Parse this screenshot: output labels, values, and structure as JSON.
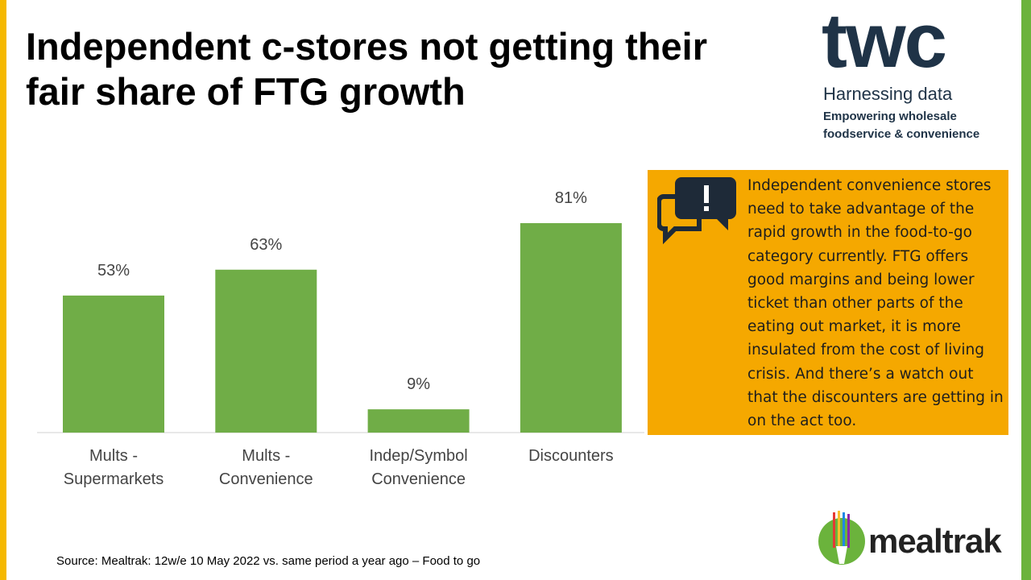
{
  "title": "Independent c-stores not getting their fair share of FTG growth",
  "chart_data": {
    "type": "bar",
    "categories": [
      "Mults - Supermarkets",
      "Mults - Convenience",
      "Indep/Symbol Convenience",
      "Discounters"
    ],
    "values": [
      53,
      63,
      9,
      81
    ],
    "value_labels": [
      "53%",
      "63%",
      "9%",
      "81%"
    ],
    "color": "#70ad47"
  },
  "callout": "Independent convenience stores need to take advantage of the rapid growth in the food-to-go category currently. FTG offers good margins and being lower ticket than other parts of the eating out market, it is more insulated from the cost of living crisis. And there’s a watch out that the discounters are getting in on the act too.",
  "source": "Source: Mealtrak: 12w/e 10 May 2022 vs. same period a year ago – Food to go",
  "logo": {
    "name": "twc",
    "tagline": "Harnessing data",
    "subline": "Empowering wholesale foodservice & convenience"
  },
  "logo2": "mealtrak"
}
